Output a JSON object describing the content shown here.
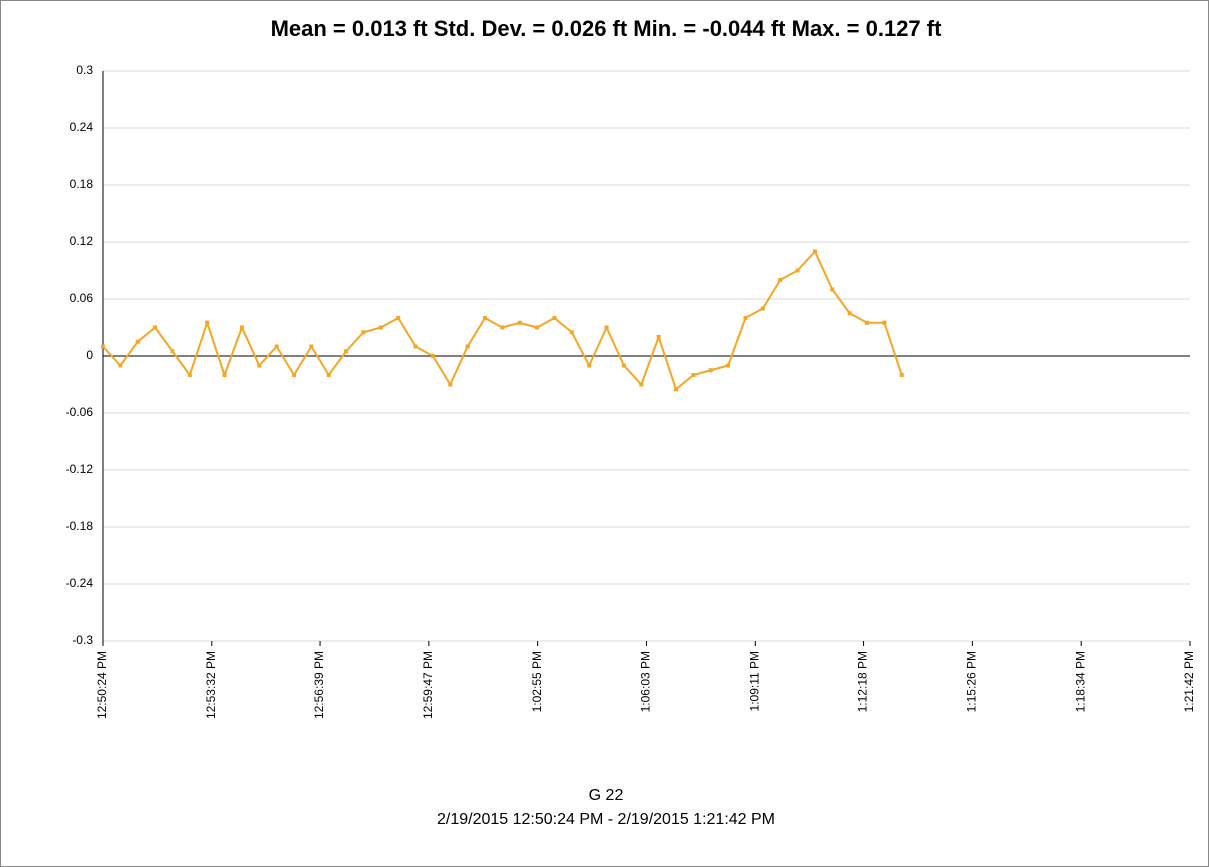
{
  "chart_data": {
    "type": "line",
    "title": "Mean = 0.013 ft  Std. Dev. = 0.026 ft  Min. = -0.044 ft  Max. = 0.127 ft",
    "x_label": "G 22",
    "subtitle": "2/19/2015 12:50:24 PM - 2/19/2015 1:21:42 PM",
    "x": [
      "12:50:24 PM",
      "12:50:54 PM",
      "12:51:24 PM",
      "12:51:54 PM",
      "12:52:24 PM",
      "12:52:54 PM",
      "12:53:24 PM",
      "12:53:54 PM",
      "12:54:24 PM",
      "12:54:54 PM",
      "12:55:24 PM",
      "12:55:54 PM",
      "12:56:24 PM",
      "12:56:54 PM",
      "12:57:24 PM",
      "12:57:54 PM",
      "12:58:24 PM",
      "12:58:54 PM",
      "12:59:24 PM",
      "12:59:54 PM",
      "1:00:24 PM",
      "1:00:54 PM",
      "1:01:24 PM",
      "1:01:54 PM",
      "1:02:24 PM",
      "1:02:54 PM",
      "1:03:24 PM",
      "1:03:54 PM",
      "1:04:24 PM",
      "1:04:54 PM",
      "1:05:24 PM",
      "1:05:54 PM",
      "1:06:24 PM",
      "1:06:54 PM",
      "1:07:24 PM",
      "1:07:54 PM",
      "1:08:24 PM",
      "1:08:54 PM",
      "1:09:24 PM",
      "1:09:54 PM",
      "1:10:24 PM",
      "1:10:54 PM",
      "1:11:24 PM",
      "1:11:54 PM",
      "1:12:24 PM",
      "1:12:54 PM",
      "1:13:24 PM"
    ],
    "series": [
      {
        "color": "#f5a623",
        "values": [
          0.01,
          -0.01,
          0.015,
          0.03,
          0.005,
          -0.02,
          0.035,
          -0.02,
          0.03,
          -0.01,
          0.01,
          -0.02,
          0.01,
          -0.02,
          0.005,
          0.025,
          0.03,
          0.04,
          0.01,
          0.0,
          -0.03,
          0.01,
          0.04,
          0.03,
          0.035,
          0.03,
          0.04,
          0.025,
          -0.01,
          0.03,
          -0.01,
          -0.03,
          0.02,
          -0.035,
          -0.02,
          -0.015,
          -0.01,
          0.04,
          0.05,
          0.08,
          0.09,
          0.11,
          0.07,
          0.045,
          0.035,
          0.035,
          -0.02
        ]
      }
    ],
    "xlim": [
      "12:50:24 PM",
      "1:21:42 PM"
    ],
    "xticks": [
      "12:50:24 PM",
      "12:53:32 PM",
      "12:56:39 PM",
      "12:59:47 PM",
      "1:02:55 PM",
      "1:06:03 PM",
      "1:09:11 PM",
      "1:12:18 PM",
      "1:15:26 PM",
      "1:18:34 PM",
      "1:21:42 PM"
    ],
    "ylim": [
      -0.3,
      0.3
    ],
    "yticks": [
      0.3,
      0.24,
      0.18,
      0.12,
      0.06,
      0,
      -0.06,
      -0.12,
      -0.18,
      -0.24,
      -0.3
    ],
    "grid": true,
    "zero_line": true
  }
}
